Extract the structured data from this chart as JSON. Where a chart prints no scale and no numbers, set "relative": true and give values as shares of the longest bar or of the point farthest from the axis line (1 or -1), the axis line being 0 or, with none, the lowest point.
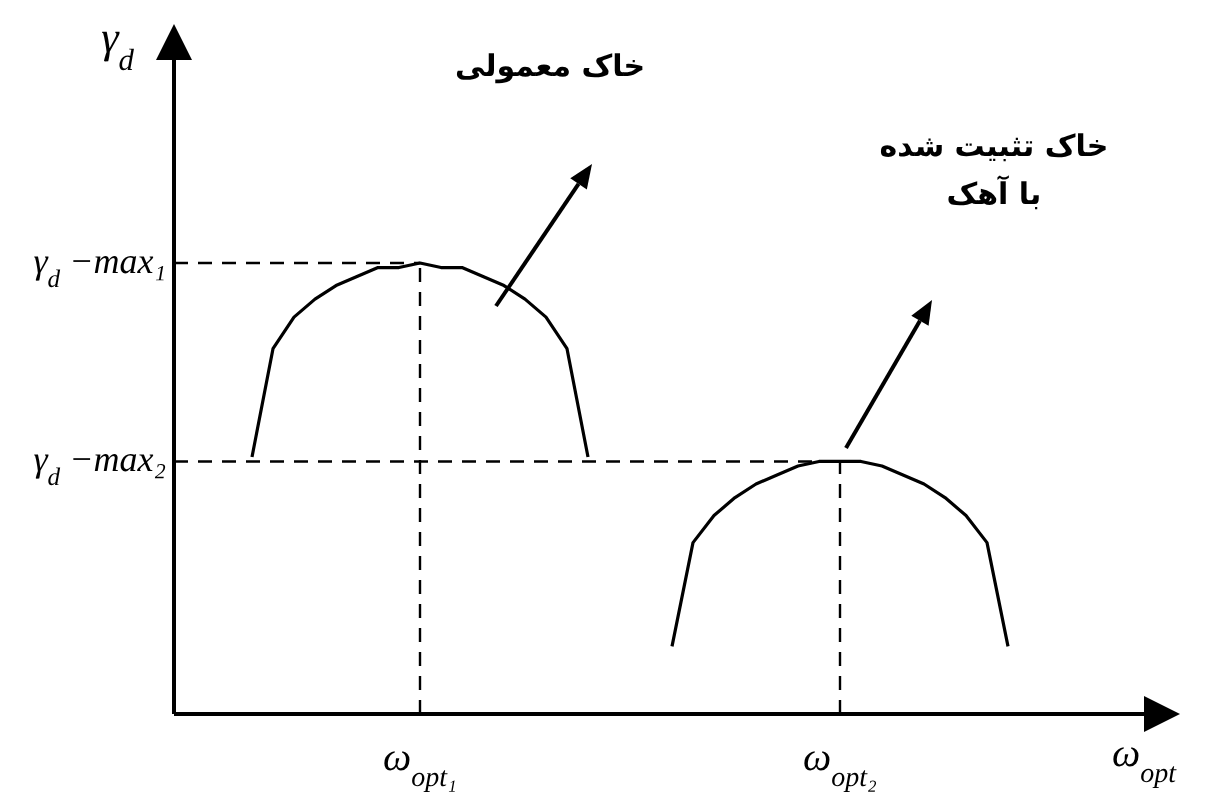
{
  "chart_data": {
    "type": "line",
    "relative": true,
    "xlabel": "ω$_{opt}$",
    "ylabel": "γ$_{d}$",
    "grid": "x",
    "categories": [
      null,
      null,
      null,
      null,
      null,
      null,
      null,
      null,
      null,
      null,
      "ω$_{opt₁}$",
      null,
      null,
      null,
      null,
      null,
      null,
      null,
      null,
      null,
      null,
      null,
      null,
      null,
      null,
      null,
      null,
      null,
      null,
      null,
      "ω$_{opt₂}$",
      null,
      null,
      null,
      null,
      null,
      null,
      null,
      null,
      null,
      null,
      null,
      null,
      null,
      null,
      null
    ],
    "series": [
      {
        "color": "#000000",
        "values": [
          null,
          null,
          0.57,
          0.81,
          0.88,
          0.92,
          0.95,
          0.97,
          0.99,
          0.99,
          1,
          0.99,
          0.99,
          0.97,
          0.95,
          0.92,
          0.88,
          0.81,
          0.57,
          null,
          null,
          null,
          null,
          null,
          null,
          null,
          null,
          null,
          null,
          null,
          null,
          null,
          null,
          null,
          null,
          null,
          null,
          null,
          null,
          null,
          null,
          null,
          null,
          null,
          null,
          null
        ]
      },
      {
        "color": "#000000",
        "values": [
          null,
          null,
          null,
          null,
          null,
          null,
          null,
          null,
          null,
          null,
          null,
          null,
          null,
          null,
          null,
          null,
          null,
          null,
          null,
          null,
          null,
          null,
          0.15,
          0.38,
          0.44,
          0.48,
          0.51,
          0.53,
          0.55,
          0.56,
          0.56,
          0.56,
          0.55,
          0.53,
          0.51,
          0.48,
          0.44,
          0.38,
          0.15,
          null,
          null,
          null,
          null,
          null,
          null,
          null
        ]
      }
    ],
    "line_style": "solid",
    "ref_lines": [
      {
        "axis": "y",
        "value": 1,
        "label": "γ$_{d}$ −max₁",
        "line_style": "dashed",
        "color": "#000000"
      },
      {
        "axis": "y",
        "value": 0.56,
        "label": "γ$_{d}$ −max₂",
        "line_style": "dashed",
        "color": "#000000"
      }
    ],
    "annotations": [
      "خاک معمولی",
      "خاک تثبیت شده\nبا آهک"
    ]
  }
}
